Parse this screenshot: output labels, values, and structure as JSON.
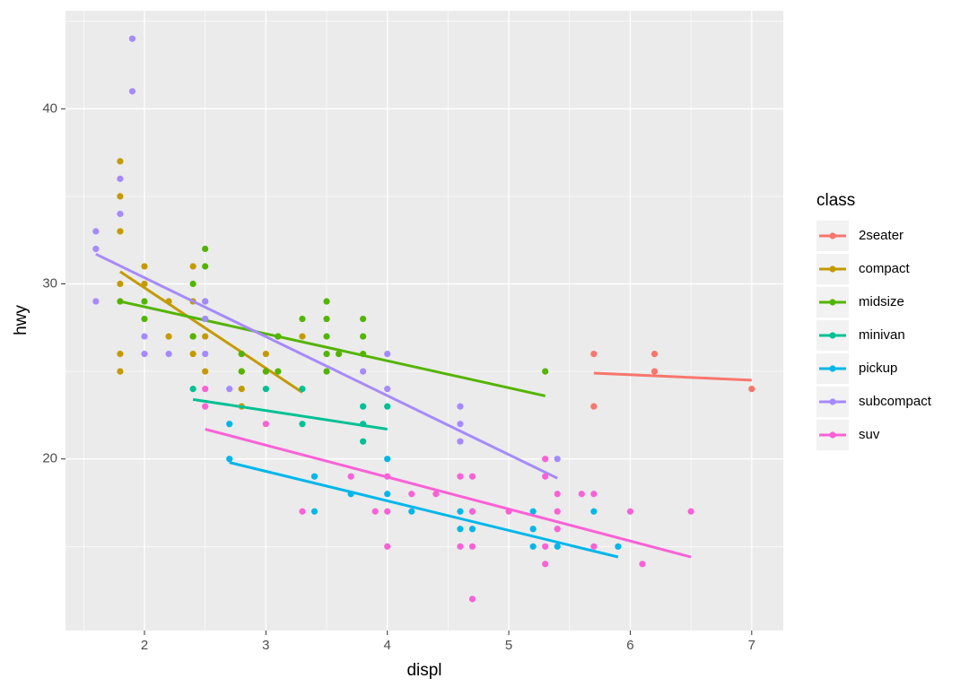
{
  "chart_data": {
    "type": "scatter",
    "x_label": "displ",
    "y_label": "hwy",
    "legend_title": "class",
    "xlim": [
      1.35,
      7.26
    ],
    "ylim": [
      10.2,
      45.6
    ],
    "xticks": [
      2,
      3,
      4,
      5,
      6,
      7
    ],
    "yticks": [
      20,
      30,
      40
    ],
    "grid": true,
    "legend": "right",
    "series": [
      {
        "name": "2seater",
        "color": "#F8766D",
        "x": [
          5.7,
          5.7,
          6.2,
          6.2,
          7.0
        ],
        "y": [
          26,
          23,
          26,
          25,
          24
        ],
        "fit_x": [
          5.7,
          7.0
        ],
        "fit_y": [
          24.9,
          24.5
        ]
      },
      {
        "name": "compact",
        "color": "#C49A00",
        "x": [
          1.8,
          1.8,
          1.8,
          1.8,
          1.8,
          1.8,
          2.0,
          2.0,
          2.2,
          2.2,
          2.4,
          2.4,
          2.4,
          2.4,
          2.5,
          2.5,
          2.8,
          2.8,
          2.8,
          2.8,
          3.0,
          3.0,
          3.1,
          3.3
        ],
        "y": [
          37,
          35,
          33,
          30,
          26,
          25,
          31,
          30,
          27,
          29,
          31,
          29,
          27,
          26,
          27,
          25,
          26,
          25,
          24,
          23,
          25,
          26,
          27,
          27
        ],
        "fit_x": [
          1.8,
          3.3
        ],
        "fit_y": [
          30.7,
          23.8
        ]
      },
      {
        "name": "midsize",
        "color": "#53B400",
        "x": [
          1.8,
          2.0,
          2.0,
          2.4,
          2.4,
          2.5,
          2.5,
          2.5,
          2.5,
          2.8,
          2.8,
          3.0,
          3.1,
          3.1,
          3.3,
          3.5,
          3.5,
          3.5,
          3.5,
          3.5,
          3.6,
          3.8,
          3.8,
          3.8,
          5.3
        ],
        "y": [
          29,
          29,
          28,
          30,
          27,
          32,
          31,
          29,
          28,
          26,
          25,
          25,
          27,
          25,
          28,
          29,
          28,
          27,
          26,
          25,
          26,
          28,
          27,
          26,
          25
        ],
        "fit_x": [
          1.8,
          5.3
        ],
        "fit_y": [
          29,
          23.6
        ]
      },
      {
        "name": "minivan",
        "color": "#00C094",
        "x": [
          2.4,
          3.0,
          3.3,
          3.3,
          3.8,
          3.8,
          3.8,
          4.0
        ],
        "y": [
          24,
          24,
          24,
          22,
          23,
          22,
          21,
          23
        ],
        "fit_x": [
          2.4,
          4.0
        ],
        "fit_y": [
          23.4,
          21.7
        ]
      },
      {
        "name": "pickup",
        "color": "#00B6EB",
        "x": [
          2.7,
          2.7,
          3.4,
          3.4,
          3.7,
          4.0,
          4.0,
          4.2,
          4.6,
          4.6,
          4.7,
          4.7,
          5.2,
          5.2,
          5.2,
          5.4,
          5.7,
          5.9
        ],
        "y": [
          22,
          20,
          19,
          17,
          18,
          20,
          18,
          17,
          17,
          16,
          17,
          16,
          17,
          16,
          15,
          15,
          17,
          15
        ],
        "fit_x": [
          2.7,
          5.9
        ],
        "fit_y": [
          19.8,
          14.4
        ]
      },
      {
        "name": "subcompact",
        "color": "#A58AFF",
        "x": [
          1.6,
          1.6,
          1.6,
          1.8,
          1.8,
          1.9,
          1.9,
          2.0,
          2.0,
          2.2,
          2.5,
          2.5,
          2.5,
          2.7,
          3.8,
          4.0,
          4.0,
          4.6,
          4.6,
          4.6,
          5.4
        ],
        "y": [
          33,
          32,
          29,
          36,
          34,
          44,
          41,
          27,
          26,
          26,
          29,
          28,
          26,
          24,
          25,
          26,
          24,
          23,
          22,
          21,
          20
        ],
        "fit_x": [
          1.6,
          5.4
        ],
        "fit_y": [
          31.7,
          18.9
        ]
      },
      {
        "name": "suv",
        "color": "#FB61D7",
        "x": [
          2.5,
          2.5,
          3.0,
          3.3,
          3.7,
          3.9,
          4.0,
          4.0,
          4.0,
          4.2,
          4.4,
          4.6,
          4.6,
          4.7,
          4.7,
          4.7,
          4.7,
          5.0,
          5.3,
          5.3,
          5.3,
          5.3,
          5.4,
          5.4,
          5.4,
          5.6,
          5.7,
          5.7,
          6.0,
          6.1,
          6.5
        ],
        "y": [
          24,
          23,
          22,
          17,
          19,
          17,
          19,
          17,
          15,
          18,
          18,
          19,
          15,
          19,
          17,
          15,
          12,
          17,
          20,
          19,
          15,
          14,
          18,
          17,
          16,
          18,
          18,
          15,
          17,
          14,
          17
        ],
        "fit_x": [
          2.5,
          6.5
        ],
        "fit_y": [
          21.7,
          14.4
        ]
      }
    ]
  }
}
